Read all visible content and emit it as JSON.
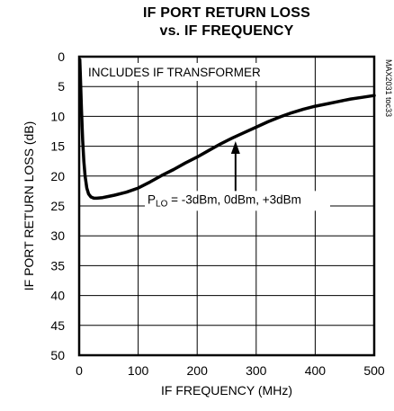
{
  "chart_data": {
    "type": "line",
    "title": "IF PORT RETURN LOSS",
    "subtitle": "vs. IF FREQUENCY",
    "xlabel": "IF FREQUENCY (MHz)",
    "ylabel": "IF PORT RETURN LOSS (dB)",
    "xlim": [
      0,
      500
    ],
    "ylim": [
      0,
      50
    ],
    "y_inverted": true,
    "grid": true,
    "x_ticks": [
      0,
      100,
      200,
      300,
      400,
      500
    ],
    "y_ticks": [
      0,
      5,
      10,
      15,
      20,
      25,
      30,
      35,
      40,
      45,
      50
    ],
    "series": [
      {
        "x": [
          1,
          2,
          4,
          6,
          8,
          10,
          13,
          16,
          20,
          25,
          30,
          40,
          50,
          60,
          80,
          100,
          120,
          140,
          160,
          180,
          200,
          220,
          240,
          260,
          280,
          300,
          320,
          340,
          360,
          380,
          400,
          420,
          440,
          460,
          480,
          500
        ],
        "values": [
          0.5,
          3,
          9,
          14,
          17.5,
          20,
          22,
          23,
          23.5,
          23.7,
          23.7,
          23.6,
          23.4,
          23.2,
          22.7,
          22,
          21,
          19.9,
          18.9,
          17.8,
          16.8,
          15.7,
          14.6,
          13.6,
          12.7,
          11.8,
          10.9,
          10.1,
          9.4,
          8.8,
          8.3,
          7.9,
          7.5,
          7.1,
          6.8,
          6.5
        ]
      }
    ],
    "annotations": {
      "box_note": "INCLUDES IF TRANSFORMER",
      "label_prefix": "P",
      "label_sub": "LO",
      "label_rest": " = -3dBm, 0dBm, +3dBm",
      "arrow_x": 265,
      "arrow_tip_y": 14.0,
      "part_code": "MAX2031 toc33"
    }
  }
}
